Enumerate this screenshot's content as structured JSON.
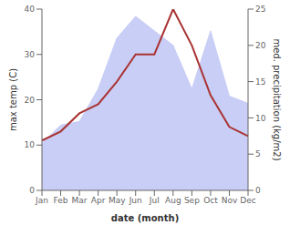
{
  "chart_data": {
    "type": "line",
    "categories": [
      "Jan",
      "Feb",
      "Mar",
      "Apr",
      "May",
      "Jun",
      "Jul",
      "Aug",
      "Sep",
      "Oct",
      "Nov",
      "Dec"
    ],
    "xlabel": "date (month)",
    "ylabel": "max temp (C)",
    "y2label": "med. precipitation (kg/m2)",
    "ylim": [
      0,
      40
    ],
    "yticks": [
      0,
      10,
      20,
      30,
      40
    ],
    "y2lim": [
      0,
      25
    ],
    "y2ticks": [
      0,
      5,
      10,
      15,
      20,
      25
    ],
    "grid": false,
    "series": [
      {
        "type": "area",
        "axis": "y2",
        "color": "#c8cef5",
        "values": [
          6.5,
          9,
          9.5,
          14,
          21,
          24,
          22,
          20,
          14,
          22,
          13,
          12
        ]
      },
      {
        "type": "line",
        "axis": "y",
        "color": "#aa3333",
        "values": [
          11,
          13,
          17,
          19,
          24,
          30,
          30,
          40,
          32,
          21,
          14,
          12
        ]
      }
    ]
  }
}
